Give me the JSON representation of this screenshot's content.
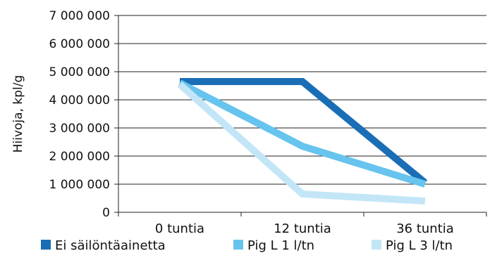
{
  "chart_data": {
    "type": "line",
    "ylabel": "Hiivoja, kpl/g",
    "xlabel": "",
    "ylim": [
      0,
      7000000
    ],
    "yticks": [
      0,
      1000000,
      2000000,
      3000000,
      4000000,
      5000000,
      6000000,
      7000000
    ],
    "ytick_labels": [
      "0",
      "1 000 000",
      "2 000 000",
      "3 000 000",
      "4 000 000",
      "5 000 000",
      "6 000 000",
      "7 000 000"
    ],
    "categories": [
      "0 tuntia",
      "12 tuntia",
      "36 tuntia"
    ],
    "grid": true,
    "legend_position": "bottom",
    "series": [
      {
        "name": "Ei säilöntäainetta",
        "color": "#1a6eb5",
        "values": [
          4650000,
          4650000,
          1050000
        ]
      },
      {
        "name": "Pig L 1 l/tn",
        "color": "#66c4ee",
        "values": [
          4600000,
          2350000,
          1000000
        ]
      },
      {
        "name": "Pig L 3 l/tn",
        "color": "#c3e6f7",
        "values": [
          4550000,
          650000,
          400000
        ]
      }
    ]
  }
}
